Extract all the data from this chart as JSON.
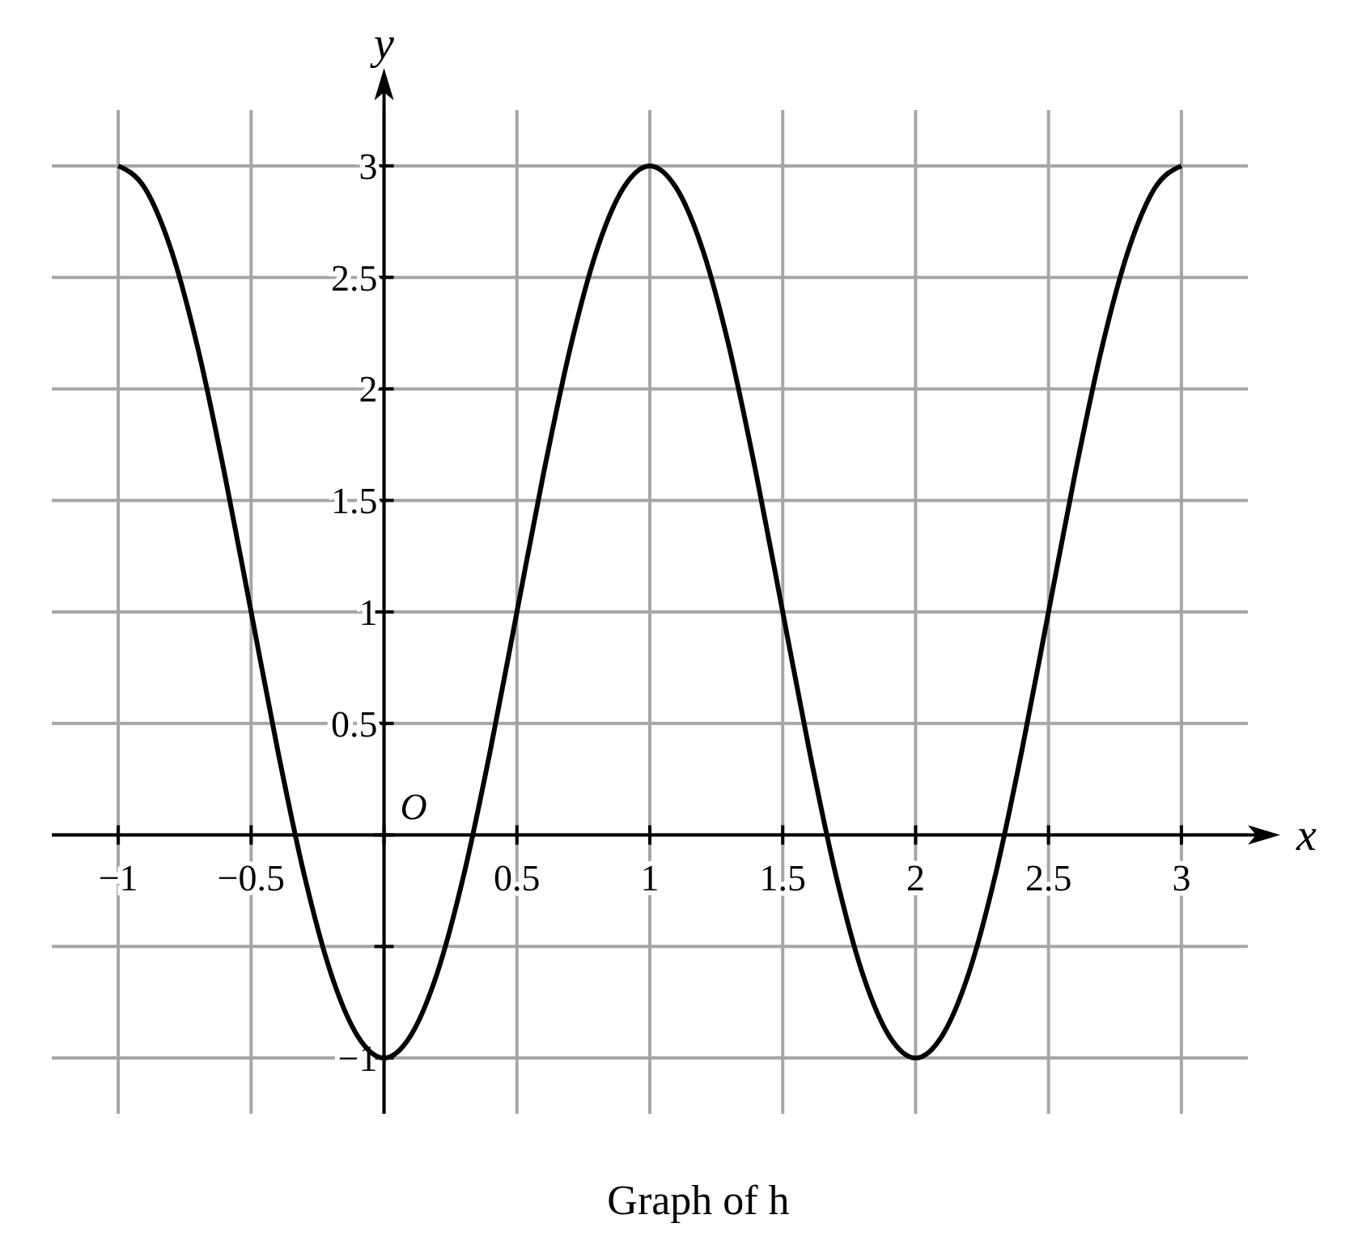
{
  "chart_data": {
    "type": "line",
    "title": "Graph of h",
    "xlabel": "x",
    "ylabel": "y",
    "x": [
      -1,
      -0.9,
      -0.8,
      -0.7,
      -0.6,
      -0.5,
      -0.4,
      -0.3,
      -0.2,
      -0.1,
      0,
      0.1,
      0.2,
      0.3,
      0.4,
      0.5,
      0.6,
      0.7,
      0.8,
      0.9,
      1,
      1.1,
      1.2,
      1.3,
      1.4,
      1.5,
      1.6,
      1.7,
      1.8,
      1.9,
      2,
      2.1,
      2.2,
      2.3,
      2.4,
      2.5,
      2.6,
      2.7,
      2.8,
      2.9,
      3
    ],
    "series": [
      {
        "color": "#000000",
        "values": [
          3,
          2.9,
          2.62,
          2.18,
          1.62,
          1,
          0.38,
          -0.18,
          -0.62,
          -0.9,
          -1,
          -0.9,
          -0.62,
          -0.18,
          0.38,
          1,
          1.62,
          2.18,
          2.62,
          2.9,
          3,
          2.9,
          2.62,
          2.18,
          1.62,
          1,
          0.38,
          -0.18,
          -0.62,
          -0.9,
          -1,
          -0.9,
          -0.62,
          -0.18,
          0.38,
          1,
          1.62,
          2.18,
          2.62,
          2.9,
          3
        ]
      }
    ],
    "xlim": [
      -1.25,
      3.25
    ],
    "ylim": [
      -1.25,
      3.25
    ],
    "xticks": [
      -1,
      -0.5,
      {
        "value": 0,
        "label": null
      },
      0.5,
      1,
      1.5,
      2,
      2.5,
      3
    ],
    "yticks": [
      -1,
      {
        "value": -0.5,
        "label": null
      },
      {
        "value": 0,
        "label": null
      },
      0.5,
      1,
      1.5,
      2,
      2.5,
      3
    ],
    "annotations": [
      "O"
    ],
    "grid": true,
    "marker": "none",
    "line_style": "solid"
  }
}
